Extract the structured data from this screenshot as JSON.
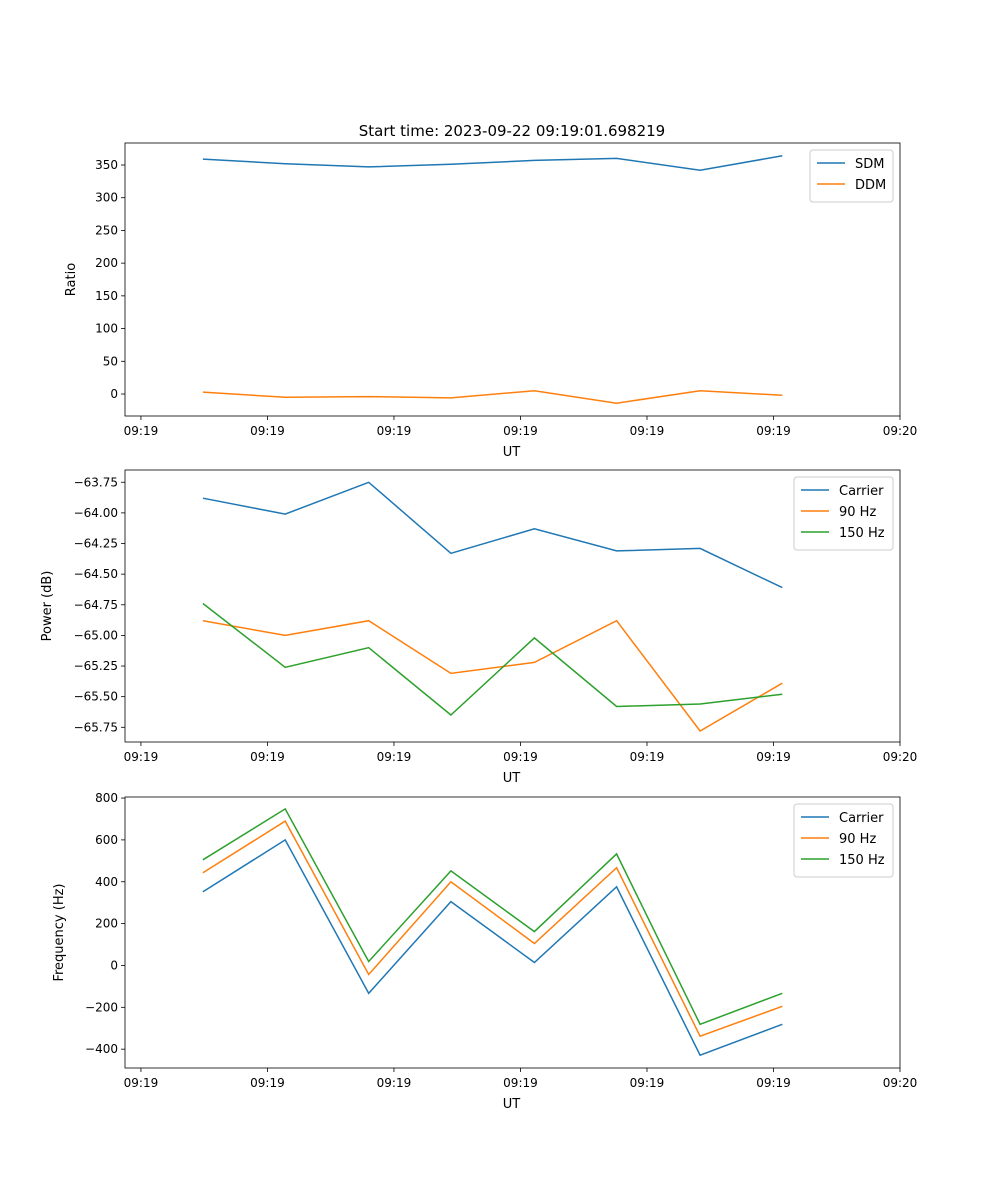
{
  "title": "Start time: 2023-09-22 09:19:01.698219",
  "colors": {
    "blue": "#1f77b4",
    "orange": "#ff7f0e",
    "green": "#2ca02c"
  },
  "chart_data": [
    {
      "type": "line",
      "xlabel": "UT",
      "ylabel": "Ratio",
      "x_unit": "seconds after 09:19:00",
      "x": [
        4.9,
        11.4,
        18.0,
        24.5,
        31.1,
        37.6,
        44.2,
        50.7
      ],
      "xlim": [
        -1.26,
        60
      ],
      "xticks": [
        0,
        10,
        20,
        30,
        40,
        50,
        60
      ],
      "xtick_labels": [
        "09:19",
        "09:19",
        "09:19",
        "09:19",
        "09:19",
        "09:19",
        "09:20"
      ],
      "ylim": [
        -33.6,
        383.6
      ],
      "yticks": [
        0,
        50,
        100,
        150,
        200,
        250,
        300,
        350
      ],
      "ytick_labels": [
        "0",
        "50",
        "100",
        "150",
        "200",
        "250",
        "300",
        "350"
      ],
      "legend": "upper-right",
      "series": [
        {
          "name": "SDM",
          "color": "#1f77b4",
          "values": [
            359,
            352,
            347,
            351,
            357,
            360,
            342,
            364
          ]
        },
        {
          "name": "DDM",
          "color": "#ff7f0e",
          "values": [
            3,
            -5,
            -4,
            -6,
            5,
            -14,
            5,
            -2
          ]
        }
      ]
    },
    {
      "type": "line",
      "xlabel": "UT",
      "ylabel": "Power (dB)",
      "x_unit": "seconds after 09:19:00",
      "x": [
        4.9,
        11.4,
        18.0,
        24.5,
        31.1,
        37.6,
        44.2,
        50.7
      ],
      "xlim": [
        -1.26,
        60
      ],
      "xticks": [
        0,
        10,
        20,
        30,
        40,
        50,
        60
      ],
      "xtick_labels": [
        "09:19",
        "09:19",
        "09:19",
        "09:19",
        "09:19",
        "09:19",
        "09:20"
      ],
      "ylim": [
        -65.87,
        -63.65
      ],
      "yticks": [
        -65.75,
        -65.5,
        -65.25,
        -65.0,
        -64.75,
        -64.5,
        -64.25,
        -64.0,
        -63.75
      ],
      "ytick_labels": [
        "−65.75",
        "−65.50",
        "−65.25",
        "−65.00",
        "−64.75",
        "−64.50",
        "−64.25",
        "−64.00",
        "−63.75"
      ],
      "legend": "upper-right",
      "series": [
        {
          "name": "Carrier",
          "color": "#1f77b4",
          "values": [
            -63.88,
            -64.01,
            -63.75,
            -64.33,
            -64.13,
            -64.31,
            -64.29,
            -64.61
          ]
        },
        {
          "name": "90 Hz",
          "color": "#ff7f0e",
          "values": [
            -64.88,
            -65.0,
            -64.88,
            -65.31,
            -65.22,
            -64.88,
            -65.78,
            -65.39
          ]
        },
        {
          "name": "150 Hz",
          "color": "#2ca02c",
          "values": [
            -64.74,
            -65.26,
            -65.1,
            -65.65,
            -65.02,
            -65.58,
            -65.56,
            -65.48
          ]
        }
      ]
    },
    {
      "type": "line",
      "xlabel": "UT",
      "ylabel": "Frequency (Hz)",
      "x_unit": "seconds after 09:19:00",
      "x": [
        4.9,
        11.4,
        18.0,
        24.5,
        31.1,
        37.6,
        44.2,
        50.7
      ],
      "xlim": [
        -1.26,
        60
      ],
      "xticks": [
        0,
        10,
        20,
        30,
        40,
        50,
        60
      ],
      "xtick_labels": [
        "09:19",
        "09:19",
        "09:19",
        "09:19",
        "09:19",
        "09:19",
        "09:20"
      ],
      "ylim": [
        -490,
        805
      ],
      "yticks": [
        -400,
        -200,
        0,
        200,
        400,
        600,
        800
      ],
      "ytick_labels": [
        "−400",
        "−200",
        "0",
        "200",
        "400",
        "600",
        "800"
      ],
      "legend": "upper-right",
      "series": [
        {
          "name": "Carrier",
          "color": "#1f77b4",
          "values": [
            352,
            600,
            -133,
            305,
            14,
            376,
            -429,
            -281
          ]
        },
        {
          "name": "90 Hz",
          "color": "#ff7f0e",
          "values": [
            443,
            690,
            -43,
            400,
            105,
            467,
            -338,
            -195
          ]
        },
        {
          "name": "150 Hz",
          "color": "#2ca02c",
          "values": [
            505,
            748,
            19,
            452,
            162,
            533,
            -281,
            -133
          ]
        }
      ]
    }
  ]
}
